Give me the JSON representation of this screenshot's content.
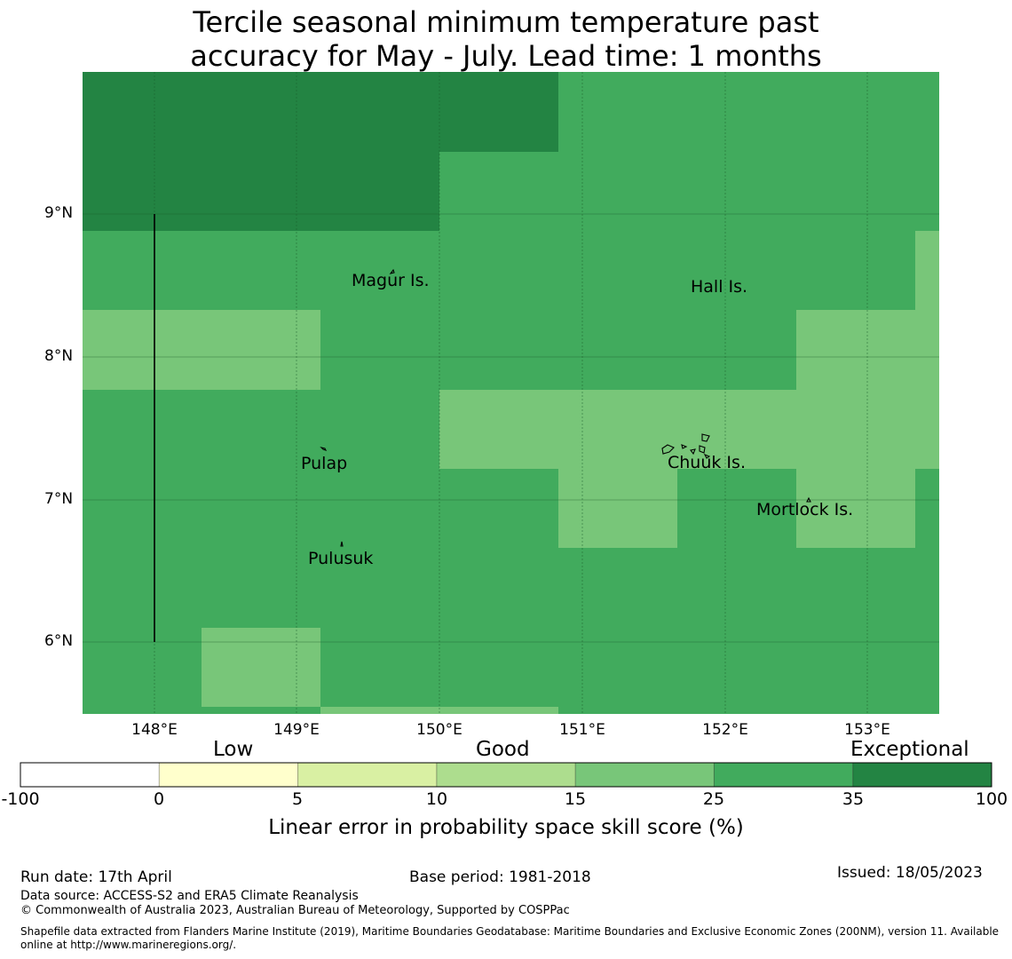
{
  "title": {
    "line1": "Tercile seasonal minimum temperature past",
    "line2": "accuracy for May - July. Lead time: 1 months"
  },
  "map": {
    "y_ticks": [
      "9°N",
      "8°N",
      "7°N",
      "6°N"
    ],
    "x_ticks": [
      "148°E",
      "149°E",
      "150°E",
      "151°E",
      "152°E",
      "153°E"
    ],
    "places": [
      "Magur Is.",
      "Hall Is.",
      "Pulap",
      "Chuuk Is.",
      "Mortlock Is.",
      "Pulusuk"
    ]
  },
  "legend": {
    "categories": [
      "Low",
      "Good",
      "Exceptional"
    ],
    "ticks": [
      "-100",
      "0",
      "5",
      "10",
      "15",
      "25",
      "35",
      "100"
    ],
    "colors": [
      "#ffffff",
      "#ffffcc",
      "#d9f0a3",
      "#addd8e",
      "#78c679",
      "#41ab5d",
      "#238443"
    ],
    "title": "Linear error in probability space skill score (%)"
  },
  "footer": {
    "run_date": "Run date: 17th April",
    "base_period": "Base period: 1981-2018",
    "issued": "Issued: 18/05/2023",
    "data_source": "Data source: ACCESS-S2 and ERA5 Climate Reanalysis",
    "copyright": "© Commonwealth of Australia 2023, Australian Bureau of Meteorology, Supported by COSPPac",
    "shapefile_1": "Shapefile data extracted from Flanders Marine Institute (2019), Maritime Boundaries Geodatabase: Maritime Boundaries and Exclusive Economic Zones (200NM), version 11. Available",
    "shapefile_2": "online at http://www.marineregions.org/."
  }
}
